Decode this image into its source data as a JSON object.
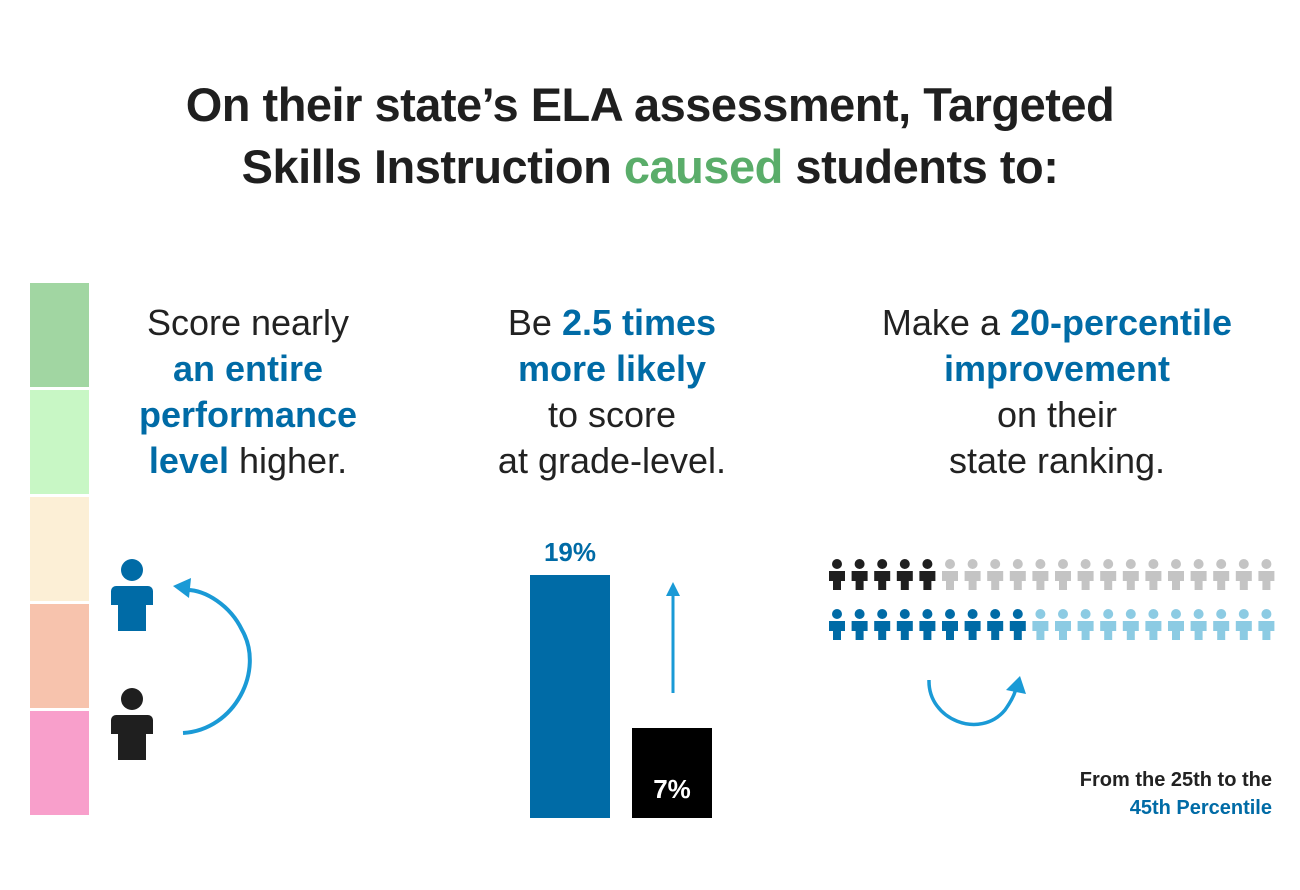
{
  "title": {
    "line1": "On their state’s ELA assessment, Targeted",
    "line2_pre": "Skills Instruction ",
    "line2_accent": "caused",
    "line2_post": " students to:"
  },
  "colors": {
    "accent_green": "#5aad6a",
    "highlight_blue": "#006ba6",
    "arrow_blue": "#1a9ad6",
    "dark": "#1f1f1f",
    "grey": "#c4c4c4",
    "light_blue": "#8ccbe3",
    "levels": [
      "#a1d6a2",
      "#c8f7c5",
      "#fcefd6",
      "#f7c3ad",
      "#f89fcb"
    ]
  },
  "col1": {
    "t1": "Score nearly",
    "h1": "an entire",
    "h2": "performance",
    "h3": "level",
    "t2": " higher.",
    "icons": [
      "person-icon-blue",
      "person-icon-black",
      "curved-arrow-up-icon"
    ]
  },
  "col2": {
    "t1": "Be ",
    "h1": "2.5 times",
    "h2": "more likely",
    "t2": "to score",
    "t3": "at grade-level.",
    "chart_data": {
      "type": "bar",
      "categories": [
        "",
        ""
      ],
      "values": [
        19,
        7
      ],
      "value_labels": [
        "19%",
        "7%"
      ],
      "colors": [
        "#006ba6",
        "#000000"
      ]
    }
  },
  "col3": {
    "t1": "Make a ",
    "h1": "20-percentile",
    "h2": "improvement",
    "t2": "on their",
    "t3": "state ranking.",
    "row1": {
      "highlighted": 5,
      "total": 20
    },
    "row2": {
      "highlighted": 9,
      "total": 20
    },
    "caption_line1": "From the 25th to the",
    "caption_line2": "45th Percentile"
  }
}
